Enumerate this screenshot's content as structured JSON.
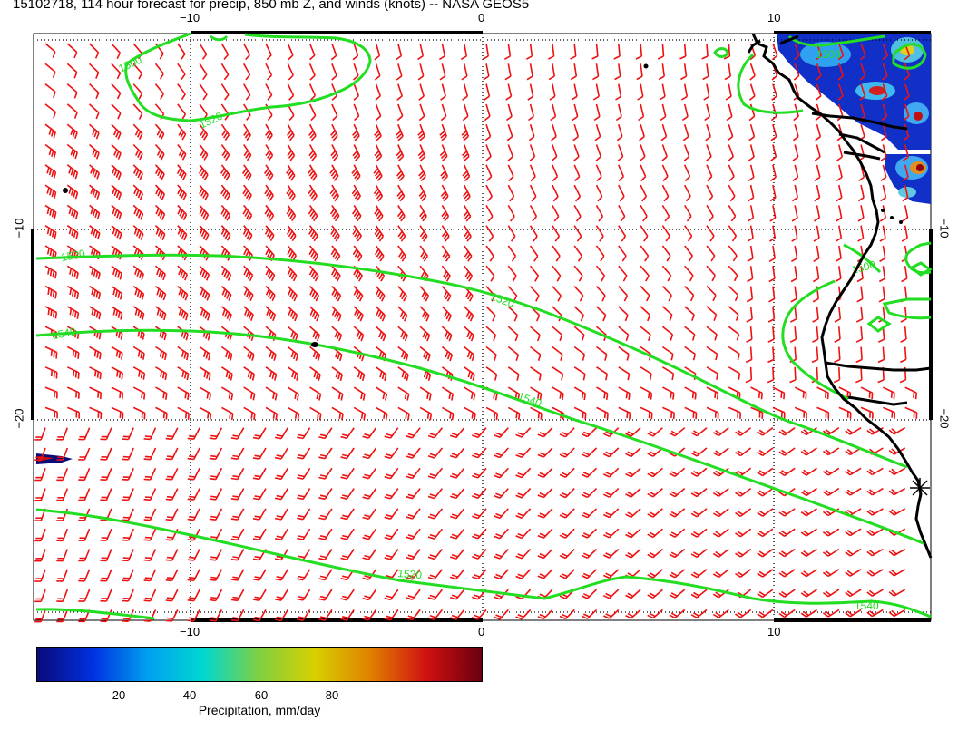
{
  "title": "15102718, 114 hour forecast for precip, 850 mb Z, and winds (knots) -- NASA GEOS5",
  "axes": {
    "top_labels": [
      "−10",
      "0",
      "10"
    ],
    "bottom_labels": [
      "−10",
      "0",
      "10"
    ],
    "left_labels": [
      "−10",
      "−20"
    ],
    "right_labels": [
      "−10",
      "−20"
    ]
  },
  "contours": {
    "color": "#22dd22",
    "labels": [
      "1500",
      "1520",
      "1500",
      "1520",
      "1540",
      "1520",
      "1540",
      "1520",
      "1500",
      "1540"
    ]
  },
  "colorbar": {
    "label": "Precipitation, mm/day",
    "ticks": [
      "20",
      "40",
      "60",
      "80"
    ],
    "colors": [
      "#0a0a78",
      "#0030e0",
      "#00a0f0",
      "#00d8d0",
      "#80d040",
      "#d8d000",
      "#e08000",
      "#d01010",
      "#6a0010"
    ]
  },
  "map_colors": {
    "barbs": "#ee1111",
    "coast": "#000000",
    "grid": "#000000"
  }
}
